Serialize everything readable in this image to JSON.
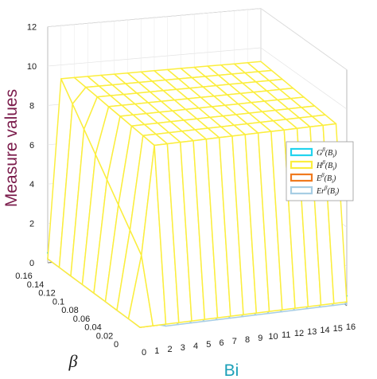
{
  "chart_data": {
    "type": "surface3d",
    "zlabel": "Measure values",
    "xlabel": "Bi",
    "ylabel": "β",
    "xlim": [
      0,
      16
    ],
    "ylim": [
      0,
      0.16
    ],
    "zlim": [
      0,
      12
    ],
    "xticks": [
      "0",
      "1",
      "2",
      "3",
      "4",
      "5",
      "6",
      "7",
      "8",
      "9",
      "10",
      "11",
      "12",
      "13",
      "14",
      "15",
      "16"
    ],
    "yticks": [
      "0",
      "0.02",
      "0.04",
      "0.06",
      "0.08",
      "0.1",
      "0.12",
      "0.14",
      "0.16"
    ],
    "zticks": [
      "0",
      "2",
      "4",
      "6",
      "8",
      "10",
      "12"
    ],
    "grid": true,
    "legend_position": "right",
    "series": [
      {
        "name": "G^β(B_i)",
        "label_base": "G",
        "label_sup": "β",
        "label_arg": "(B",
        "label_sub": "i",
        "label_close": ")",
        "color": "#22d3ee",
        "approx_plateau": 0.0
      },
      {
        "name": "H^β(B_i)",
        "label_base": "H",
        "label_sup": "β",
        "label_arg": "(B",
        "label_sub": "i",
        "label_close": ")",
        "color": "#fbee3e",
        "approx_plateau": 9.3
      },
      {
        "name": "E^β(B_i)",
        "label_base": "E",
        "label_sup": "β",
        "label_arg": "(B",
        "label_sub": "i",
        "label_close": ")",
        "color": "#f07a1f",
        "approx_plateau": 0.9
      },
      {
        "name": "Er^β(B_i)",
        "label_base": "Er",
        "label_sup": "β",
        "label_arg": "(B",
        "label_sub": "i",
        "label_close": ")",
        "color": "#a7cde3",
        "approx_plateau": 0.1
      }
    ]
  }
}
